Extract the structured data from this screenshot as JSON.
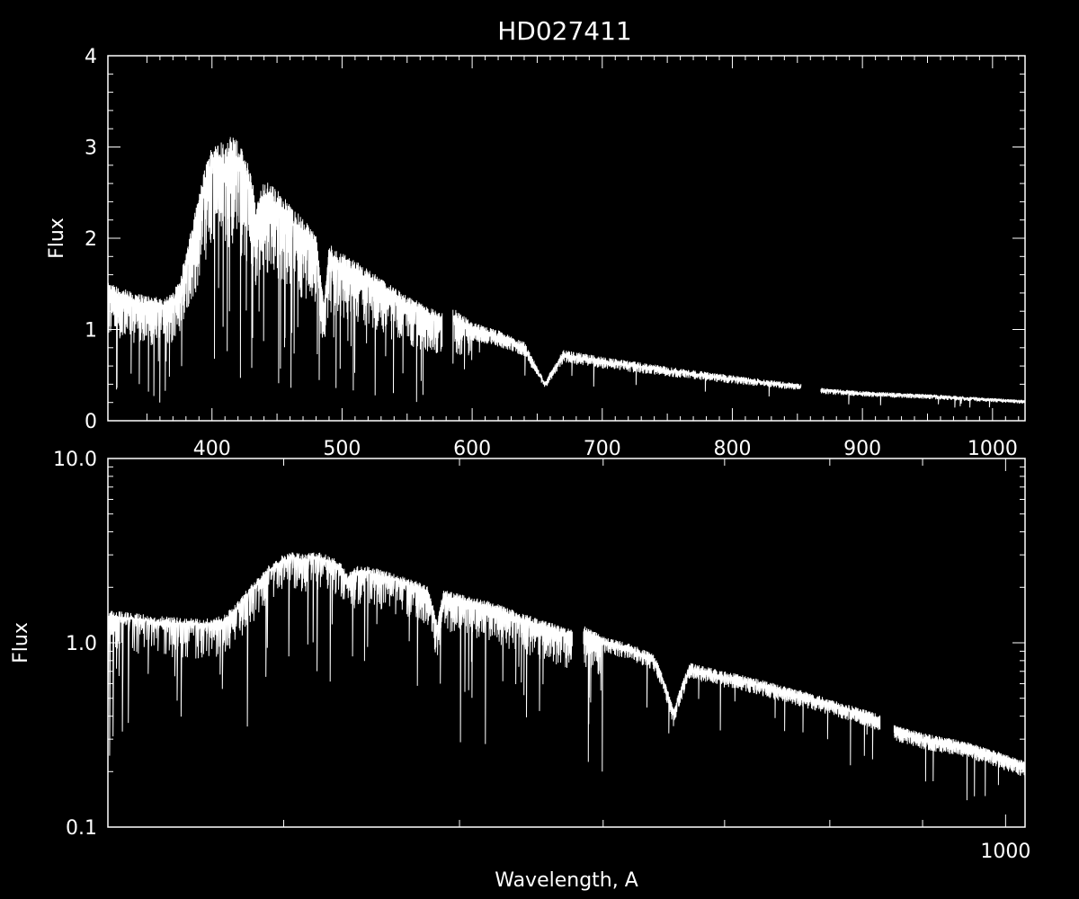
{
  "figure": {
    "title": "HD027411",
    "background_color": "#000000",
    "foreground_color": "#ffffff"
  },
  "chart_data": [
    {
      "type": "line",
      "title": "HD027411",
      "xlabel": "",
      "ylabel": "Flux",
      "xlim": [
        320,
        1025
      ],
      "ylim": [
        0,
        4
      ],
      "y_scale": "linear",
      "grid": false,
      "x_tick_labels": [
        "400",
        "500",
        "600",
        "700",
        "800",
        "900",
        "1000"
      ],
      "y_tick_labels": [
        "0",
        "1",
        "2",
        "3",
        "4"
      ],
      "series": [
        {
          "color": "#ffffff",
          "x": [
            320,
            340,
            360,
            370,
            375,
            380,
            385,
            390,
            395,
            400,
            405,
            410,
            415,
            420,
            425,
            430,
            434,
            440,
            450,
            460,
            470,
            480,
            486,
            490,
            500,
            520,
            540,
            560,
            575,
            585,
            600,
            620,
            640,
            656,
            670,
            700,
            750,
            800,
            850,
            870,
            900,
            950,
            1000,
            1025
          ],
          "y": [
            1.4,
            1.3,
            1.25,
            1.3,
            1.45,
            1.7,
            2.0,
            2.3,
            2.6,
            2.8,
            2.9,
            2.8,
            2.9,
            2.85,
            2.7,
            2.55,
            2.2,
            2.45,
            2.35,
            2.2,
            2.05,
            1.9,
            1.2,
            1.8,
            1.7,
            1.55,
            1.35,
            1.2,
            1.1,
            1.15,
            1.0,
            0.92,
            0.8,
            0.4,
            0.72,
            0.65,
            0.55,
            0.46,
            0.38,
            0.33,
            0.3,
            0.27,
            0.23,
            0.21
          ]
        }
      ]
    },
    {
      "type": "line",
      "title": "",
      "xlabel": "Wavelength, A",
      "ylabel": "Flux",
      "xlim": [
        320,
        1025
      ],
      "ylim": [
        0.1,
        10.0
      ],
      "y_scale": "log",
      "x_scale": "log",
      "grid": false,
      "x_tick_labels": [
        "1000"
      ],
      "y_tick_labels": [
        "0.1",
        "1.0",
        "10.0"
      ],
      "series": [
        {
          "color": "#ffffff",
          "x": [
            320,
            340,
            360,
            370,
            375,
            380,
            385,
            390,
            395,
            400,
            405,
            410,
            415,
            420,
            425,
            430,
            434,
            440,
            450,
            460,
            470,
            480,
            486,
            490,
            500,
            520,
            540,
            560,
            575,
            585,
            600,
            620,
            640,
            656,
            670,
            700,
            750,
            800,
            850,
            870,
            900,
            950,
            1000,
            1025
          ],
          "y": [
            1.4,
            1.3,
            1.25,
            1.3,
            1.45,
            1.7,
            2.0,
            2.3,
            2.6,
            2.8,
            2.9,
            2.8,
            2.9,
            2.85,
            2.7,
            2.55,
            2.2,
            2.45,
            2.35,
            2.2,
            2.05,
            1.9,
            1.2,
            1.8,
            1.7,
            1.55,
            1.35,
            1.2,
            1.1,
            1.15,
            1.0,
            0.92,
            0.8,
            0.4,
            0.72,
            0.65,
            0.55,
            0.46,
            0.38,
            0.33,
            0.3,
            0.27,
            0.23,
            0.21
          ]
        }
      ]
    }
  ]
}
